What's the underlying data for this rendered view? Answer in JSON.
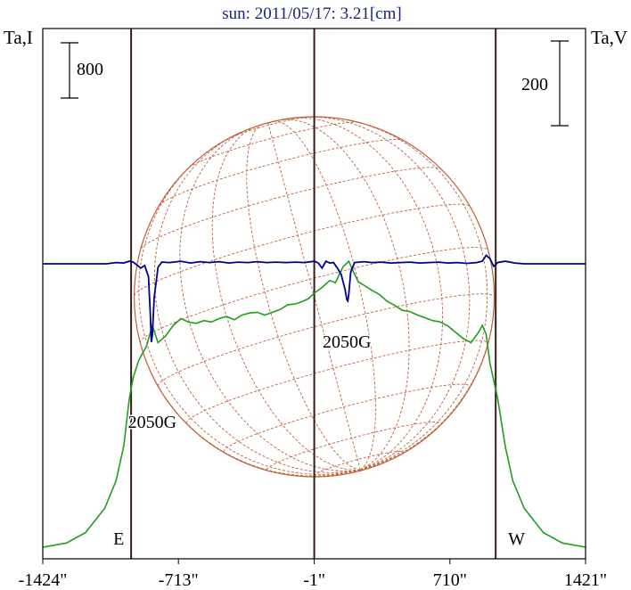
{
  "chart_data": {
    "type": "line",
    "title": "sun: 2011/05/17: 3.21[cm]",
    "left_axis_label": "Ta,I",
    "right_axis_label": "Ta,V",
    "x_tick_labels": [
      "-1424\"",
      "-713\"",
      "-1\"",
      "710\"",
      "1421\""
    ],
    "x_ticks": [
      -1424,
      -713,
      -1,
      710,
      1421
    ],
    "xlim": [
      -1424,
      1421
    ],
    "limb_markers": [
      {
        "label": "E",
        "x": -961
      },
      {
        "label": "W",
        "x": 950
      }
    ],
    "center_marker_x": -1,
    "scale_bar_left": {
      "label": "800"
    },
    "scale_bar_right": {
      "label": "200"
    },
    "annotations": [
      {
        "text": "2050G",
        "x": -850
      },
      {
        "text": "2050G",
        "x": 170
      }
    ],
    "series": [
      {
        "name": "I",
        "color": "#1f9e1f",
        "points": [
          [
            -1424,
            40
          ],
          [
            -1300,
            100
          ],
          [
            -1200,
            250
          ],
          [
            -1100,
            600
          ],
          [
            -1040,
            1000
          ],
          [
            -1000,
            1500
          ],
          [
            -970,
            2200
          ],
          [
            -950,
            2500
          ],
          [
            -920,
            2750
          ],
          [
            -880,
            2950
          ],
          [
            -850,
            3250
          ],
          [
            -820,
            3000
          ],
          [
            -780,
            3100
          ],
          [
            -740,
            3250
          ],
          [
            -700,
            3350
          ],
          [
            -660,
            3300
          ],
          [
            -620,
            3280
          ],
          [
            -580,
            3320
          ],
          [
            -540,
            3300
          ],
          [
            -500,
            3350
          ],
          [
            -460,
            3380
          ],
          [
            -420,
            3330
          ],
          [
            -380,
            3400
          ],
          [
            -340,
            3430
          ],
          [
            -300,
            3440
          ],
          [
            -260,
            3400
          ],
          [
            -220,
            3440
          ],
          [
            -180,
            3480
          ],
          [
            -140,
            3550
          ],
          [
            -100,
            3560
          ],
          [
            -60,
            3600
          ],
          [
            -30,
            3640
          ],
          [
            0,
            3720
          ],
          [
            40,
            3800
          ],
          [
            80,
            3900
          ],
          [
            110,
            3870
          ],
          [
            150,
            4100
          ],
          [
            180,
            4180
          ],
          [
            200,
            4050
          ],
          [
            230,
            3880
          ],
          [
            260,
            3830
          ],
          [
            300,
            3760
          ],
          [
            340,
            3700
          ],
          [
            380,
            3600
          ],
          [
            420,
            3540
          ],
          [
            460,
            3470
          ],
          [
            500,
            3450
          ],
          [
            540,
            3400
          ],
          [
            580,
            3360
          ],
          [
            620,
            3320
          ],
          [
            660,
            3300
          ],
          [
            700,
            3240
          ],
          [
            740,
            3150
          ],
          [
            780,
            3060
          ],
          [
            820,
            3000
          ],
          [
            860,
            3150
          ],
          [
            880,
            3250
          ],
          [
            900,
            3120
          ],
          [
            920,
            2700
          ],
          [
            940,
            2450
          ],
          [
            960,
            2200
          ],
          [
            1000,
            1500
          ],
          [
            1040,
            1000
          ],
          [
            1100,
            600
          ],
          [
            1200,
            250
          ],
          [
            1300,
            100
          ],
          [
            1421,
            40
          ]
        ]
      },
      {
        "name": "V",
        "color": "#00008b",
        "points": [
          [
            -1424,
            0
          ],
          [
            -1090,
            0
          ],
          [
            -1040,
            3
          ],
          [
            -1000,
            2
          ],
          [
            -970,
            6
          ],
          [
            -950,
            4
          ],
          [
            -930,
            -3
          ],
          [
            -910,
            -10
          ],
          [
            -890,
            -4
          ],
          [
            -870,
            -30
          ],
          [
            -860,
            -120
          ],
          [
            -855,
            -185
          ],
          [
            -850,
            -170
          ],
          [
            -840,
            -80
          ],
          [
            -820,
            -8
          ],
          [
            -800,
            4
          ],
          [
            -760,
            3
          ],
          [
            -700,
            6
          ],
          [
            -650,
            2
          ],
          [
            -600,
            5
          ],
          [
            -550,
            3
          ],
          [
            -500,
            5
          ],
          [
            -450,
            2
          ],
          [
            -400,
            4
          ],
          [
            -350,
            3
          ],
          [
            -300,
            5
          ],
          [
            -250,
            3
          ],
          [
            -200,
            4
          ],
          [
            -150,
            3
          ],
          [
            -100,
            4
          ],
          [
            -50,
            3
          ],
          [
            0,
            6
          ],
          [
            20,
            2
          ],
          [
            40,
            -10
          ],
          [
            60,
            6
          ],
          [
            80,
            2
          ],
          [
            100,
            3
          ],
          [
            120,
            -10
          ],
          [
            140,
            -25
          ],
          [
            160,
            -60
          ],
          [
            170,
            -85
          ],
          [
            175,
            -88
          ],
          [
            180,
            -70
          ],
          [
            190,
            -20
          ],
          [
            210,
            3
          ],
          [
            260,
            5
          ],
          [
            300,
            3
          ],
          [
            350,
            4
          ],
          [
            400,
            2
          ],
          [
            450,
            3
          ],
          [
            500,
            4
          ],
          [
            550,
            2
          ],
          [
            600,
            3
          ],
          [
            650,
            4
          ],
          [
            700,
            2
          ],
          [
            750,
            3
          ],
          [
            800,
            1
          ],
          [
            850,
            3
          ],
          [
            880,
            6
          ],
          [
            900,
            20
          ],
          [
            920,
            12
          ],
          [
            940,
            -6
          ],
          [
            960,
            3
          ],
          [
            1000,
            6
          ],
          [
            1050,
            2
          ],
          [
            1100,
            0
          ],
          [
            1421,
            0
          ]
        ]
      }
    ],
    "grid": false,
    "colors": {
      "disk": "#c0603a",
      "marker_lines": "#3a1a1a",
      "title": "#1a237e",
      "axes": "#000000"
    }
  }
}
